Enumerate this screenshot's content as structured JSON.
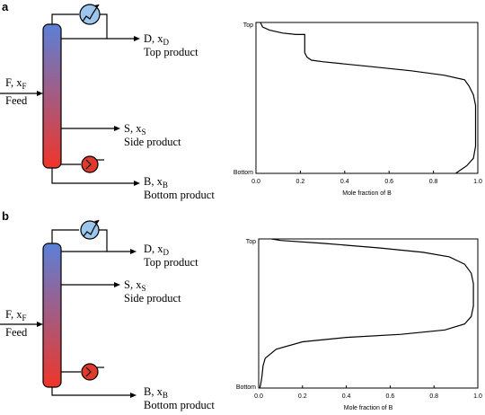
{
  "colors": {
    "column_top": "#5b80d8",
    "column_bottom": "#ef3528",
    "condenser": "#9cc6ee",
    "reboiler": "#e03a2c"
  },
  "panels": [
    {
      "label": "a",
      "streams": {
        "feed_symbol": "F, x",
        "feed_sub": "F",
        "feed_name": "Feed",
        "top_symbol": "D, x",
        "top_sub": "D",
        "top_name": "Top product",
        "side_symbol": "S, x",
        "side_sub": "S",
        "side_name": "Side product",
        "bottom_symbol": "B, x",
        "bottom_sub": "B",
        "bottom_name": "Bottom product"
      },
      "chart_data": {
        "type": "line",
        "xlabel": "Mole fraction of B",
        "xlim": [
          0,
          1
        ],
        "xticks": [
          "0.0",
          "0.2",
          "0.4",
          "0.6",
          "0.8",
          "1.0"
        ],
        "ylabel_top": "Top",
        "ylabel_bottom": "Bottom",
        "ylim": [
          0,
          1
        ],
        "points": [
          [
            0.02,
            1.0
          ],
          [
            0.03,
            0.97
          ],
          [
            0.06,
            0.95
          ],
          [
            0.12,
            0.93
          ],
          [
            0.18,
            0.92
          ],
          [
            0.22,
            0.92
          ],
          [
            0.22,
            0.8
          ],
          [
            0.23,
            0.77
          ],
          [
            0.25,
            0.75
          ],
          [
            0.3,
            0.74
          ],
          [
            0.5,
            0.71
          ],
          [
            0.7,
            0.68
          ],
          [
            0.85,
            0.65
          ],
          [
            0.94,
            0.62
          ],
          [
            0.96,
            0.58
          ],
          [
            0.98,
            0.52
          ],
          [
            0.99,
            0.45
          ],
          [
            0.99,
            0.3
          ],
          [
            0.99,
            0.18
          ],
          [
            0.98,
            0.1
          ],
          [
            0.95,
            0.05
          ],
          [
            0.9,
            0.0
          ]
        ]
      }
    },
    {
      "label": "b",
      "streams": {
        "feed_symbol": "F, x",
        "feed_sub": "F",
        "feed_name": "Feed",
        "top_symbol": "D, x",
        "top_sub": "D",
        "top_name": "Top product",
        "side_symbol": "S, x",
        "side_sub": "S",
        "side_name": "Side product",
        "bottom_symbol": "B, x",
        "bottom_sub": "B",
        "bottom_name": "Bottom product"
      },
      "chart_data": {
        "type": "line",
        "xlabel": "Mole fraction of B",
        "xlim": [
          0,
          1
        ],
        "xticks": [
          "0.0",
          "0.2",
          "0.4",
          "0.6",
          "0.8",
          "1.0"
        ],
        "ylabel_top": "Top",
        "ylabel_bottom": "Bottom",
        "ylim": [
          0,
          1
        ],
        "points": [
          [
            0.06,
            1.0
          ],
          [
            0.1,
            0.99
          ],
          [
            0.3,
            0.97
          ],
          [
            0.55,
            0.94
          ],
          [
            0.75,
            0.91
          ],
          [
            0.87,
            0.88
          ],
          [
            0.94,
            0.83
          ],
          [
            0.97,
            0.77
          ],
          [
            0.98,
            0.7
          ],
          [
            0.98,
            0.55
          ],
          [
            0.97,
            0.48
          ],
          [
            0.94,
            0.43
          ],
          [
            0.85,
            0.39
          ],
          [
            0.65,
            0.36
          ],
          [
            0.4,
            0.34
          ],
          [
            0.2,
            0.31
          ],
          [
            0.08,
            0.26
          ],
          [
            0.03,
            0.2
          ],
          [
            0.02,
            0.15
          ],
          [
            0.015,
            0.08
          ],
          [
            0.01,
            0.03
          ],
          [
            0.005,
            0.0
          ]
        ]
      }
    }
  ]
}
